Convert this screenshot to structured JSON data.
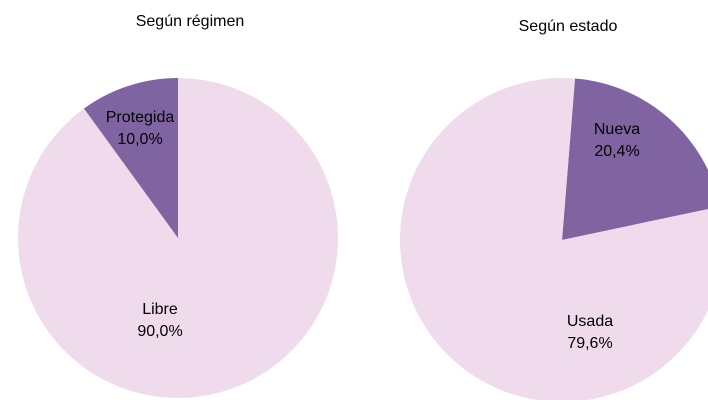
{
  "chart_data": [
    {
      "type": "pie",
      "title": "Según régimen",
      "categories": [
        "Libre",
        "Protegida"
      ],
      "values": [
        90.0,
        10.0
      ],
      "value_labels": [
        "90,0%",
        "10,0%"
      ],
      "colors": [
        "#f0dbed",
        "#8064a2"
      ]
    },
    {
      "type": "pie",
      "title": "Según estado",
      "categories": [
        "Nueva",
        "Usada"
      ],
      "values": [
        20.4,
        79.6
      ],
      "value_labels": [
        "20,4%",
        "79,6%"
      ],
      "colors": [
        "#8064a2",
        "#f0dbed"
      ]
    }
  ]
}
